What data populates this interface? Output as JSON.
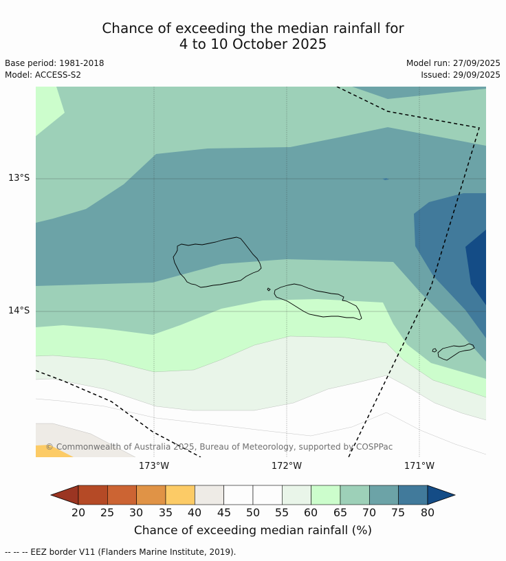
{
  "title": {
    "line1": "Chance of exceeding the median rainfall for",
    "line2": "4 to 10 October 2025"
  },
  "meta": {
    "base_period": "Base period: 1981-2018",
    "model": "Model: ACCESS-S2",
    "model_run": "Model run: 27/09/2025",
    "issued": "Issued: 29/09/2025"
  },
  "map": {
    "lat_labels": [
      "13°S",
      "14°S"
    ],
    "lon_labels": [
      "173°W",
      "172°W",
      "171°W"
    ],
    "copyright": "© Commonwealth of Australia 2025, Bureau of Meteorology, supported by COSPPac"
  },
  "colorbar": {
    "label": "Chance of exceeding median rainfall (%)",
    "ticks": [
      "20",
      "25",
      "30",
      "35",
      "40",
      "45",
      "50",
      "55",
      "60",
      "65",
      "70",
      "75",
      "80"
    ],
    "colors": {
      "below_20": "#9b3522",
      "c20_25": "#b54a26",
      "c25_30": "#cc6433",
      "c30_35": "#e09346",
      "c35_40": "#fccb66",
      "c40_45": "#eeebe6",
      "c45_50": "#fdfdfd",
      "c50_55": "#fdfdfd",
      "c55_60": "#e9f5e9",
      "c60_65": "#ccfdcc",
      "c65_70": "#9dd0b8",
      "c70_75": "#6ca3a7",
      "c75_80": "#417a9b",
      "above_80": "#144c86"
    }
  },
  "footer": {
    "eez_legend": "--  --  -- EEZ border V11 (Flanders Marine Institute, 2019)."
  }
}
